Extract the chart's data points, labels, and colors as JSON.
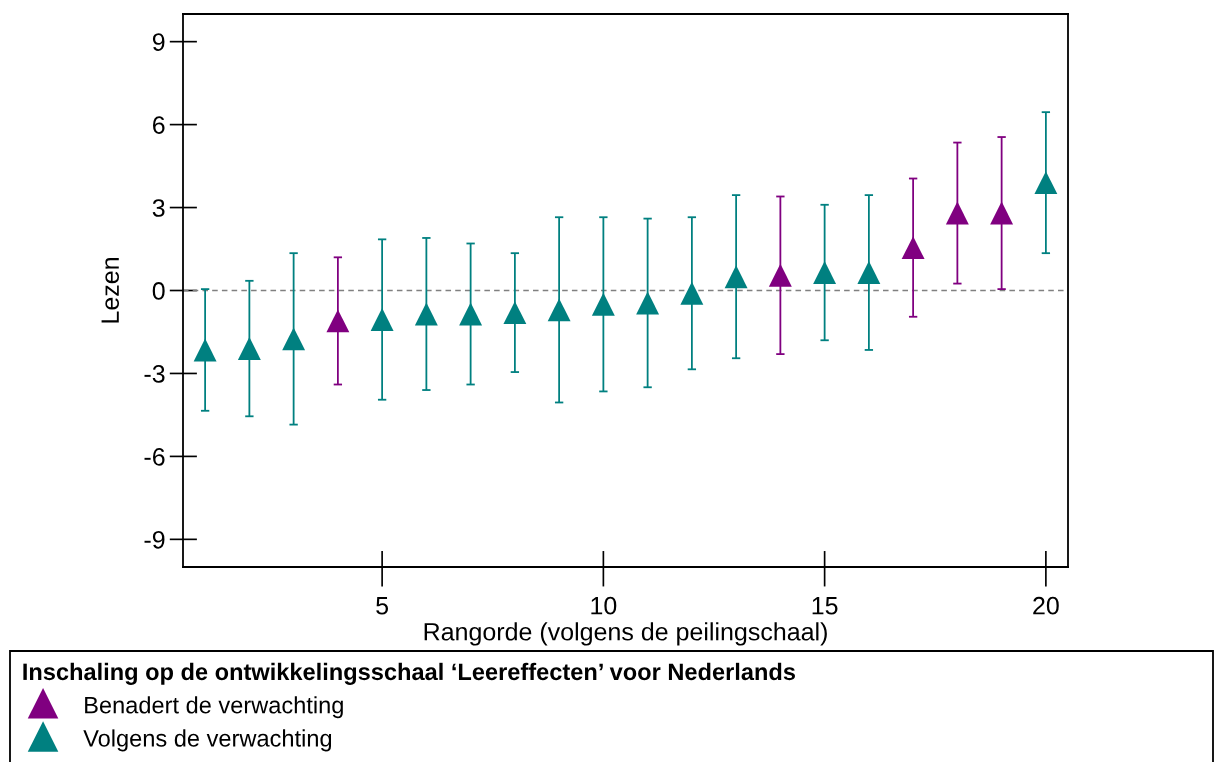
{
  "chart_data": {
    "type": "scatter",
    "xlabel": "Rangorde (volgens de peilingschaal)",
    "ylabel": "Lezen",
    "xlim": [
      0.5,
      20.5
    ],
    "xticks": [
      5,
      10,
      15,
      20
    ],
    "ylim": [
      -10,
      10
    ],
    "yticks": [
      -9,
      -6,
      -3,
      0,
      3,
      6,
      9
    ],
    "marker": "triangle",
    "legend": "bottom",
    "legend_title": "Inschaling op de ontwikkelingsschaal ‘Leereffecten’ voor Nederlands",
    "ref_lines": [
      {
        "axis": "y",
        "value": 0,
        "color": "#808080",
        "line_style": "dashed"
      }
    ],
    "series": [
      {
        "name": "Benadert de verwachting",
        "color": "#800080",
        "x": [
          4,
          14,
          17,
          18,
          19
        ],
        "values": [
          -1.1,
          0.55,
          1.55,
          2.8,
          2.8
        ],
        "errors": [
          2.3,
          2.85,
          2.5,
          2.55,
          2.75
        ]
      },
      {
        "name": "Volgens de verwachting",
        "color": "#008080",
        "x": [
          1,
          2,
          3,
          5,
          6,
          7,
          8,
          9,
          10,
          11,
          12,
          13,
          15,
          16,
          20
        ],
        "values": [
          -2.15,
          -2.1,
          -1.75,
          -1.05,
          -0.85,
          -0.85,
          -0.8,
          -0.7,
          -0.5,
          -0.45,
          -0.1,
          0.5,
          0.65,
          0.65,
          3.9
        ],
        "errors": [
          2.2,
          2.45,
          3.1,
          2.9,
          2.75,
          2.55,
          2.15,
          3.35,
          3.15,
          3.05,
          2.75,
          2.95,
          2.45,
          2.8,
          2.55
        ]
      }
    ]
  }
}
